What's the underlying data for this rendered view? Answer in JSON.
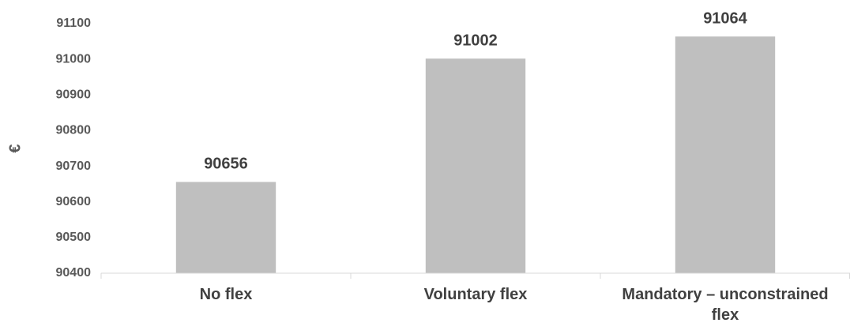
{
  "chart_data": {
    "type": "bar",
    "y_label": "€",
    "categories": [
      "No flex",
      "Voluntary flex",
      "Mandatory – unconstrained flex"
    ],
    "values": [
      90656,
      91002,
      91064
    ],
    "color": "#bfbfbf",
    "ylim": [
      90400,
      91100
    ],
    "yticks": [
      90400,
      90500,
      90600,
      90700,
      90800,
      90900,
      91000,
      91100
    ],
    "grid": false
  }
}
